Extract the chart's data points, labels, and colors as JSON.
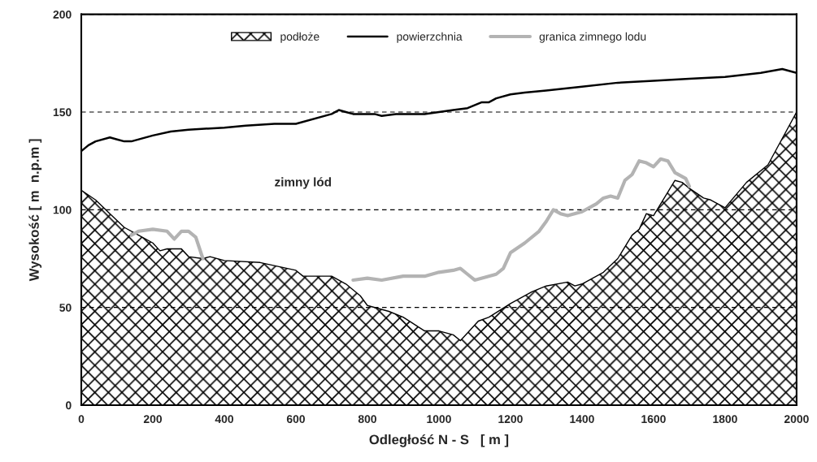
{
  "chart_data": {
    "type": "line",
    "xlabel": "Odległość N - S   [ m ]",
    "ylabel": "Wysokość [ m  n.p.m ]",
    "xlim": [
      0,
      2000
    ],
    "xticks": [
      0,
      200,
      400,
      600,
      800,
      1000,
      1200,
      1400,
      1600,
      1800,
      2000
    ],
    "ylim": [
      0,
      200
    ],
    "yticks": [
      0,
      50,
      100,
      150,
      200
    ],
    "grid": "y",
    "legend": "top",
    "annotations": [
      "zimny lód"
    ],
    "series": [
      {
        "name": "podłoże",
        "type": "area",
        "color": "#000000",
        "x": [
          0,
          40,
          80,
          120,
          160,
          200,
          220,
          240,
          280,
          300,
          340,
          360,
          400,
          500,
          600,
          620,
          700,
          740,
          780,
          800,
          860,
          900,
          960,
          1000,
          1040,
          1060,
          1080,
          1110,
          1140,
          1200,
          1260,
          1300,
          1360,
          1380,
          1400,
          1460,
          1500,
          1540,
          1560,
          1580,
          1600,
          1620,
          1660,
          1680,
          1700,
          1740,
          1760,
          1800,
          1860,
          1920,
          2000
        ],
        "values": [
          110,
          105,
          98,
          91,
          87,
          83,
          79,
          80,
          80,
          76,
          75,
          76,
          74,
          73,
          69,
          66,
          66,
          62,
          56,
          51,
          48,
          45,
          38,
          38,
          36,
          33,
          37,
          43,
          45,
          52,
          58,
          61,
          63,
          61,
          62,
          68,
          75,
          87,
          90,
          98,
          97,
          103,
          115,
          114,
          111,
          106,
          105,
          101,
          114,
          123,
          150
        ]
      },
      {
        "name": "powierzchnia",
        "color": "#000000",
        "x": [
          0,
          20,
          40,
          80,
          100,
          120,
          140,
          200,
          250,
          300,
          400,
          460,
          540,
          600,
          700,
          720,
          740,
          760,
          820,
          840,
          880,
          960,
          1000,
          1040,
          1080,
          1120,
          1140,
          1160,
          1200,
          1240,
          1300,
          1400,
          1500,
          1600,
          1700,
          1800,
          1900,
          1960,
          2000
        ],
        "values": [
          130,
          133,
          135,
          137,
          136,
          135,
          135,
          138,
          140,
          141,
          142,
          143,
          144,
          144,
          149,
          151,
          150,
          149,
          149,
          148,
          149,
          149,
          150,
          151,
          152,
          155,
          155,
          157,
          159,
          160,
          161,
          163,
          165,
          166,
          167,
          168,
          170,
          172,
          170
        ]
      },
      {
        "name": "granica zimnego lodu",
        "color": "#b3b3b3",
        "x": [
          140,
          160,
          200,
          240,
          260,
          280,
          300,
          320,
          340,
          550,
          760,
          800,
          840,
          900,
          960,
          1000,
          1040,
          1060,
          1080,
          1100,
          1160,
          1180,
          1200,
          1240,
          1280,
          1300,
          1320,
          1340,
          1360,
          1400,
          1440,
          1460,
          1480,
          1500,
          1520,
          1540,
          1560,
          1580,
          1600,
          1620,
          1640,
          1660,
          1690,
          1700
        ],
        "values": [
          87,
          89,
          90,
          89,
          85,
          89,
          89,
          86,
          75,
          null,
          64,
          65,
          64,
          66,
          66,
          68,
          69,
          70,
          67,
          64,
          67,
          70,
          78,
          83,
          89,
          94,
          100,
          98,
          97,
          99,
          103,
          106,
          107,
          106,
          115,
          118,
          125,
          124,
          122,
          126,
          125,
          119,
          116,
          112
        ]
      }
    ]
  }
}
